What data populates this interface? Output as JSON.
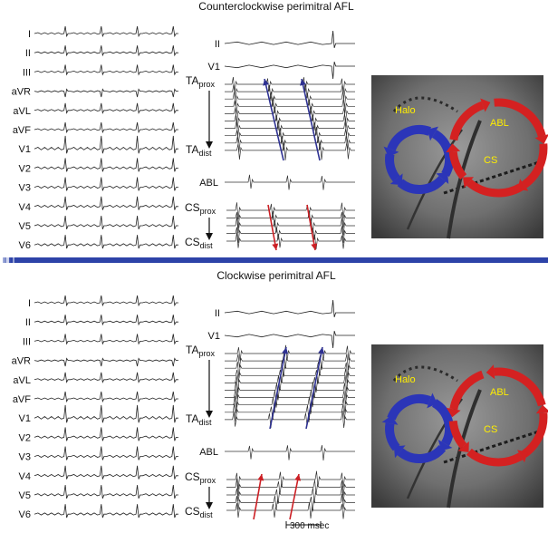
{
  "panels": [
    {
      "title": "Counterclockwise perimitral AFL",
      "ecg_leads": [
        "I",
        "II",
        "III",
        "aVR",
        "aVL",
        "aVF",
        "V1",
        "V2",
        "V3",
        "V4",
        "V5",
        "V6"
      ],
      "surface_leads": [
        "II",
        "V1"
      ],
      "ta_prox": {
        "base": "TA",
        "sub": "prox"
      },
      "ta_dist": {
        "base": "TA",
        "sub": "dist"
      },
      "abl": "ABL",
      "cs_prox": {
        "base": "CS",
        "sub": "prox"
      },
      "cs_dist": {
        "base": "CS",
        "sub": "dist"
      },
      "fluoro_labels": {
        "halo": "Halo",
        "abl": "ABL",
        "cs": "CS"
      },
      "rotation": "counterclockwise"
    },
    {
      "title": "Clockwise perimitral AFL",
      "ecg_leads": [
        "I",
        "II",
        "III",
        "aVR",
        "aVL",
        "aVF",
        "V1",
        "V2",
        "V3",
        "V4",
        "V5",
        "V6"
      ],
      "surface_leads": [
        "II",
        "V1"
      ],
      "ta_prox": {
        "base": "TA",
        "sub": "prox"
      },
      "ta_dist": {
        "base": "TA",
        "sub": "dist"
      },
      "abl": "ABL",
      "cs_prox": {
        "base": "CS",
        "sub": "prox"
      },
      "cs_dist": {
        "base": "CS",
        "sub": "dist"
      },
      "fluoro_labels": {
        "halo": "Halo",
        "abl": "ABL",
        "cs": "CS"
      },
      "rotation": "clockwise"
    }
  ],
  "scale_bar": "300 msec",
  "colors": {
    "activation_arrow_ta": "#2e3192",
    "activation_arrow_cs": "#cc1f24",
    "wavefront_blue": "#2b35b8",
    "wavefront_red": "#d42121",
    "label_yellow": "#ffee00",
    "divider": "#2d43a8"
  }
}
